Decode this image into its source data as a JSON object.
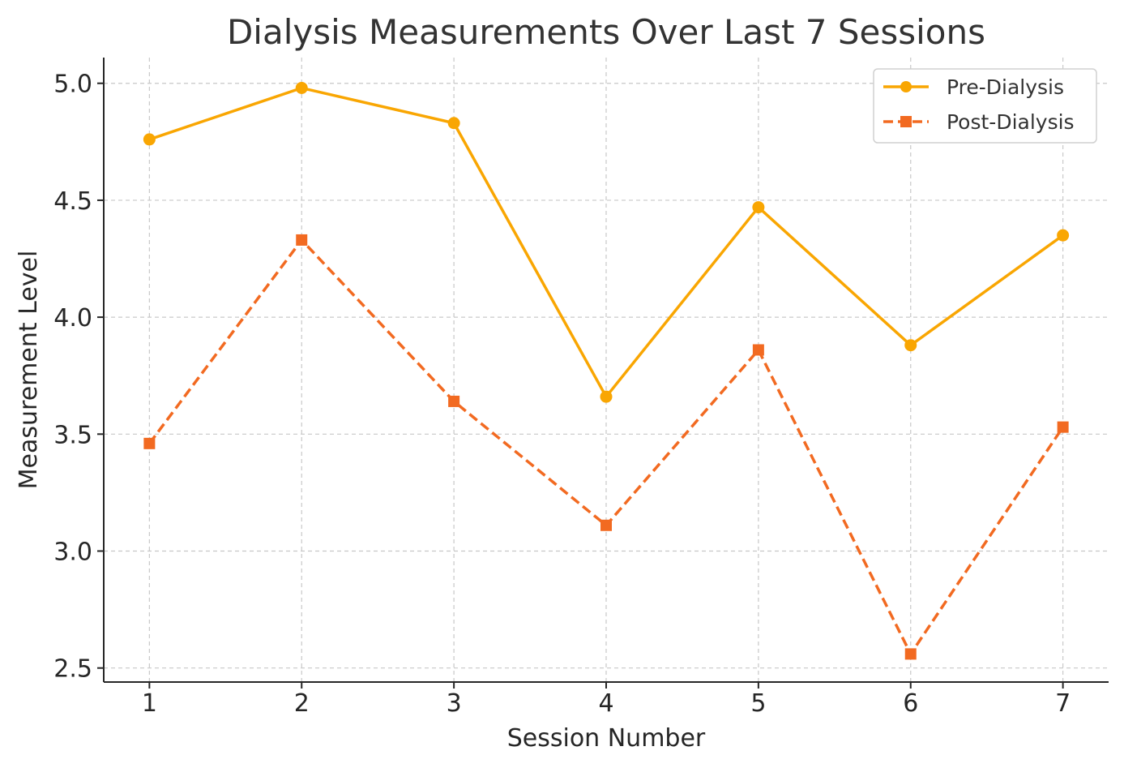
{
  "chart_data": {
    "type": "line",
    "title": "Dialysis Measurements Over Last 7 Sessions",
    "xlabel": "Session Number",
    "ylabel": "Measurement Level",
    "x": [
      1,
      2,
      3,
      4,
      5,
      6,
      7
    ],
    "x_ticks": [
      "1",
      "2",
      "3",
      "4",
      "5",
      "6",
      "7"
    ],
    "y_ticks": [
      "2.5",
      "3.0",
      "3.5",
      "4.0",
      "4.5",
      "5.0"
    ],
    "y_tick_values": [
      2.5,
      3.0,
      3.5,
      4.0,
      4.5,
      5.0
    ],
    "xlim": [
      0.7,
      7.3
    ],
    "ylim": [
      2.44,
      5.11
    ],
    "grid": true,
    "legend_position": "top-right",
    "series": [
      {
        "name": "Pre-Dialysis",
        "values": [
          4.76,
          4.98,
          4.83,
          3.66,
          4.47,
          3.88,
          4.35
        ],
        "color": "#f9a602",
        "marker": "circle",
        "line_style": "solid"
      },
      {
        "name": "Post-Dialysis",
        "values": [
          3.46,
          4.33,
          3.64,
          3.11,
          3.86,
          2.56,
          3.53
        ],
        "color": "#f26a21",
        "marker": "square",
        "line_style": "dashed"
      }
    ]
  }
}
